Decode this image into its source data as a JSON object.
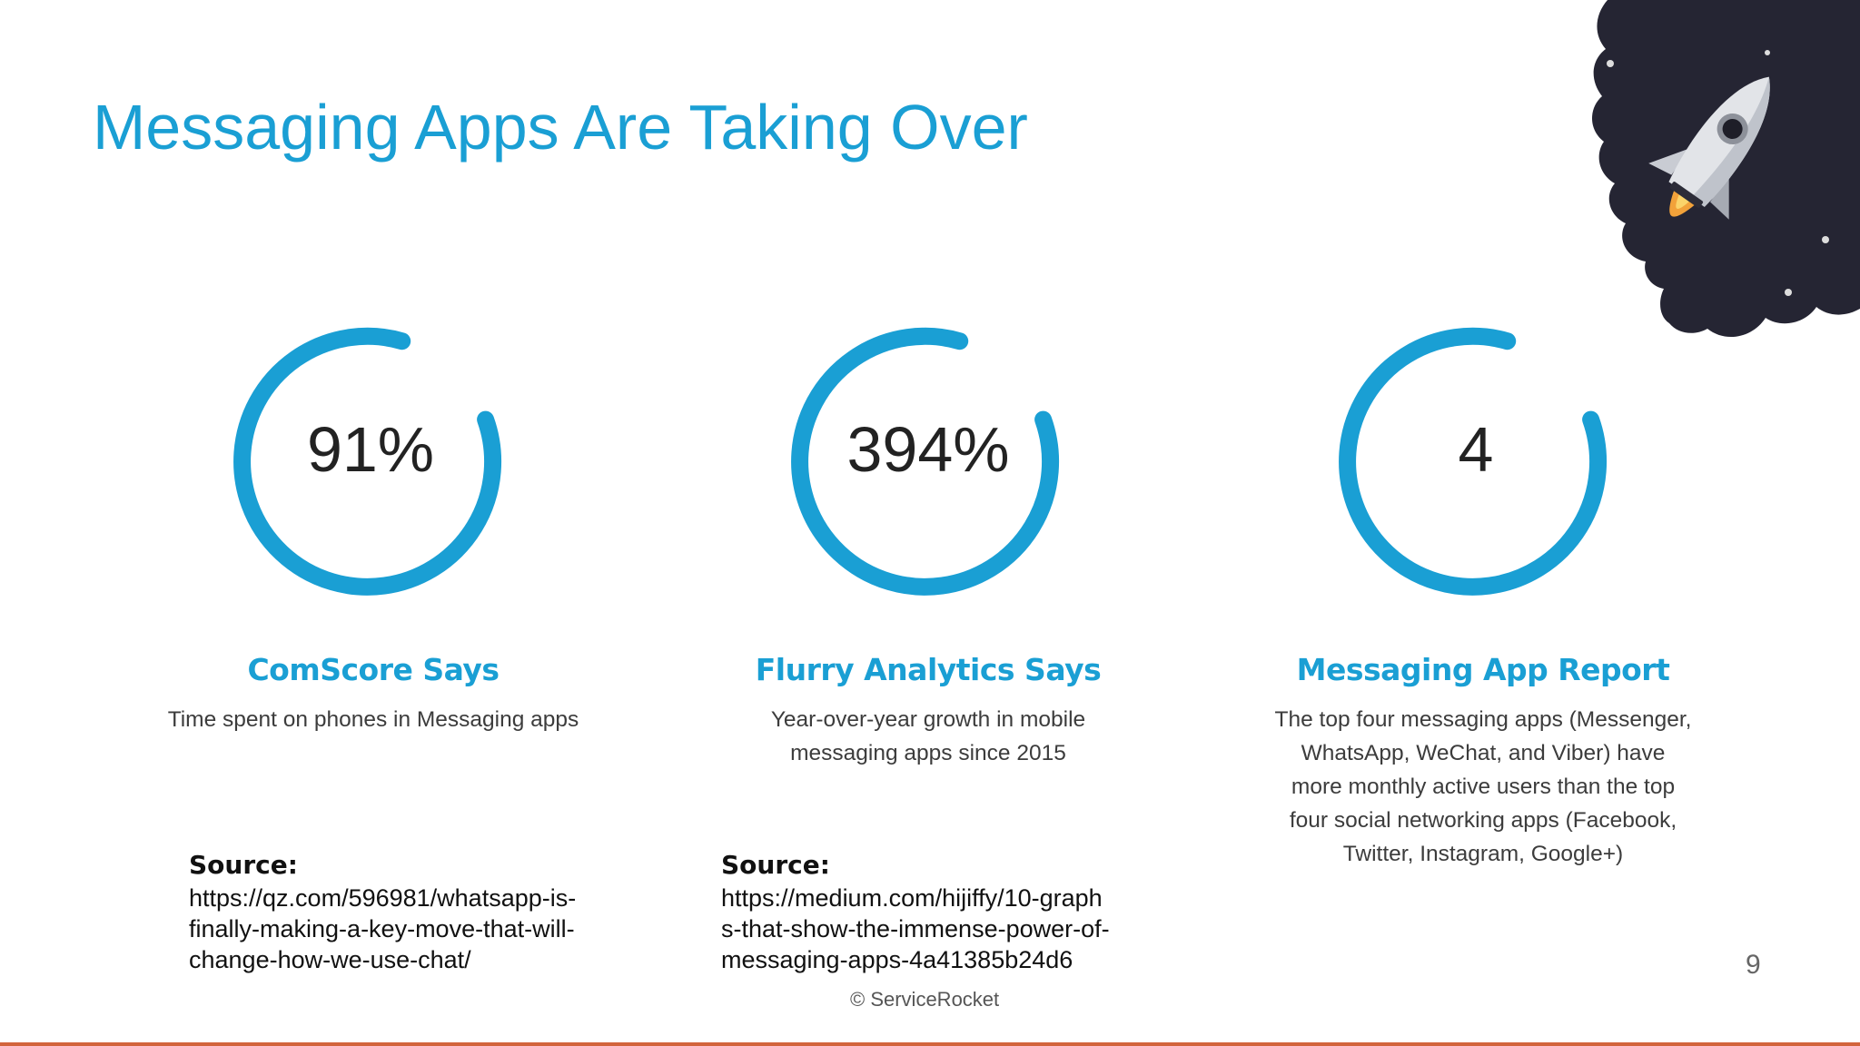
{
  "slide": {
    "title": "Messaging Apps Are Taking Over",
    "copyright": "© ServiceRocket",
    "page_number": "9",
    "accent_color": "#1a9fd4",
    "bottom_bar_color": "#d2643c",
    "decoration": "rocket-illustration"
  },
  "stats": [
    {
      "value": "91%",
      "title": "ComScore Says",
      "description": "Time spent on phones in Messaging apps",
      "source_label": "Source:",
      "source_url": "https://qz.com/596981/whatsapp-is-finally-making-a-key-move-that-will-change-how-we-use-chat/"
    },
    {
      "value": "394%",
      "title": "Flurry Analytics Says",
      "description": "Year-over-year growth in mobile messaging apps since 2015",
      "source_label": "Source:",
      "source_url": "https://medium.com/hijiffy/10-graphs-that-show-the-immense-power-of-messaging-apps-4a41385b24d6"
    },
    {
      "value": "4",
      "title": "Messaging App Report",
      "description": "The top four messaging apps (Messenger, WhatsApp, WeChat, and Viber) have more monthly active users than the top four social networking apps (Facebook, Twitter, Instagram, Google+)"
    }
  ]
}
